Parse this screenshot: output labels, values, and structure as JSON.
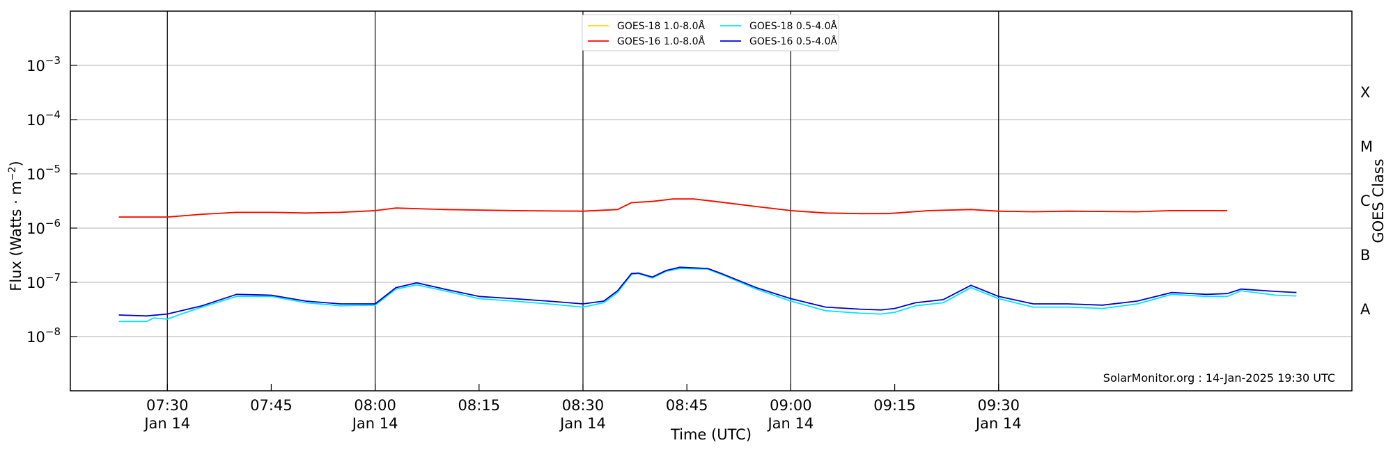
{
  "chart_data": {
    "type": "line",
    "ylabel_main": "Flux (Watts · m",
    "ylabel_sup": "−2",
    "ylabel_close": ")",
    "xlabel": "Time (UTC)",
    "right_label": "GOES Class",
    "credit": "SolarMonitor.org : 14-Jan-2025 19:30 UTC",
    "yscale": "log",
    "ylim": [
      "1e-9",
      "1e-2"
    ],
    "x_range_minutes": [
      -14,
      60.5
    ],
    "y_ticks": [
      {
        "exp": -8,
        "base": "10",
        "sup": "−8"
      },
      {
        "exp": -7,
        "base": "10",
        "sup": "−7"
      },
      {
        "exp": -6,
        "base": "10",
        "sup": "−6"
      },
      {
        "exp": -5,
        "base": "10",
        "sup": "−5"
      },
      {
        "exp": -4,
        "base": "10",
        "sup": "−4"
      },
      {
        "exp": -3,
        "base": "10",
        "sup": "−3"
      }
    ],
    "x_ticks": [
      {
        "minutes": 0,
        "time": "07:30",
        "date": "Jan 14",
        "major": true
      },
      {
        "minutes": 15,
        "time": "07:45",
        "date": "",
        "major": false
      },
      {
        "minutes": 30,
        "time": "08:00",
        "date": "Jan 14",
        "major": true
      },
      {
        "minutes": 45,
        "time": "08:15",
        "date": "",
        "major": false
      },
      {
        "minutes": 60,
        "time": "08:30",
        "date": "Jan 14",
        "major": true
      },
      {
        "minutes": 75,
        "time": "08:45",
        "date": "",
        "major": false
      },
      {
        "minutes": 90,
        "time": "09:00",
        "date": "Jan 14",
        "major": true
      },
      {
        "minutes": 105,
        "time": "09:15",
        "date": "",
        "major": false
      },
      {
        "minutes": 120,
        "time": "09:30",
        "date": "Jan 14",
        "major": true
      }
    ],
    "goes_classes": [
      {
        "label": "A",
        "exp": -7.5
      },
      {
        "label": "B",
        "exp": -6.5
      },
      {
        "label": "C",
        "exp": -5.5
      },
      {
        "label": "M",
        "exp": -4.5
      },
      {
        "label": "X",
        "exp": -3.5
      }
    ],
    "legend": [
      {
        "name": "GOES-18 1.0-8.0Å",
        "color": "#ffd700"
      },
      {
        "name": "GOES-16 1.0-8.0Å",
        "color": "#ff0000"
      },
      {
        "name": "GOES-18 0.5-4.0Å",
        "color": "#00e5ff"
      },
      {
        "name": "GOES-16 0.5-4.0Å",
        "color": "#0000cc"
      }
    ],
    "series": [
      {
        "name": "GOES-18 1.0-8.0Å",
        "color": "#ffd700",
        "points": [
          [
            -7,
            1.6e-06
          ],
          [
            0,
            1.6e-06
          ],
          [
            5,
            1.8e-06
          ],
          [
            10,
            1.95e-06
          ],
          [
            15,
            1.95e-06
          ],
          [
            20,
            1.9e-06
          ],
          [
            25,
            1.95e-06
          ],
          [
            30,
            2.1e-06
          ],
          [
            33,
            2.35e-06
          ],
          [
            40,
            2.2e-06
          ],
          [
            50,
            2.1e-06
          ],
          [
            60,
            2.05e-06
          ],
          [
            65,
            2.2e-06
          ],
          [
            67,
            2.95e-06
          ],
          [
            70,
            3.1e-06
          ],
          [
            73,
            3.45e-06
          ],
          [
            76,
            3.45e-06
          ],
          [
            80,
            3e-06
          ],
          [
            85,
            2.5e-06
          ],
          [
            90,
            2.1e-06
          ],
          [
            95,
            1.9e-06
          ],
          [
            100,
            1.85e-06
          ],
          [
            104,
            1.85e-06
          ],
          [
            110,
            2.1e-06
          ],
          [
            116,
            2.2e-06
          ],
          [
            120,
            2.05e-06
          ],
          [
            125,
            2e-06
          ],
          [
            130,
            2.05e-06
          ],
          [
            140,
            2e-06
          ],
          [
            145,
            2.1e-06
          ],
          [
            150,
            2.1e-06
          ],
          [
            153,
            2.1e-06
          ]
        ]
      },
      {
        "name": "GOES-16 1.0-8.0Å",
        "color": "#ff0000",
        "points": [
          [
            -7,
            1.6e-06
          ],
          [
            0,
            1.6e-06
          ],
          [
            5,
            1.8e-06
          ],
          [
            10,
            1.95e-06
          ],
          [
            15,
            1.95e-06
          ],
          [
            20,
            1.9e-06
          ],
          [
            25,
            1.95e-06
          ],
          [
            30,
            2.1e-06
          ],
          [
            33,
            2.35e-06
          ],
          [
            40,
            2.2e-06
          ],
          [
            50,
            2.1e-06
          ],
          [
            60,
            2.05e-06
          ],
          [
            65,
            2.2e-06
          ],
          [
            67,
            2.95e-06
          ],
          [
            70,
            3.1e-06
          ],
          [
            73,
            3.45e-06
          ],
          [
            76,
            3.45e-06
          ],
          [
            80,
            3e-06
          ],
          [
            85,
            2.5e-06
          ],
          [
            90,
            2.1e-06
          ],
          [
            95,
            1.9e-06
          ],
          [
            100,
            1.85e-06
          ],
          [
            104,
            1.85e-06
          ],
          [
            110,
            2.1e-06
          ],
          [
            116,
            2.2e-06
          ],
          [
            120,
            2.05e-06
          ],
          [
            125,
            2e-06
          ],
          [
            130,
            2.05e-06
          ],
          [
            140,
            2e-06
          ],
          [
            145,
            2.1e-06
          ],
          [
            150,
            2.1e-06
          ],
          [
            153,
            2.1e-06
          ]
        ]
      },
      {
        "name": "GOES-18 0.5-4.0Å",
        "color": "#00e5ff",
        "points": [
          [
            -7,
            1.9e-08
          ],
          [
            -3,
            1.9e-08
          ],
          [
            -2,
            2.2e-08
          ],
          [
            0,
            2.1e-08
          ],
          [
            2,
            2.6e-08
          ],
          [
            5,
            3.5e-08
          ],
          [
            10,
            5.5e-08
          ],
          [
            15,
            5.5e-08
          ],
          [
            20,
            4.2e-08
          ],
          [
            25,
            3.7e-08
          ],
          [
            30,
            3.8e-08
          ],
          [
            33,
            7.5e-08
          ],
          [
            36,
            9e-08
          ],
          [
            40,
            7e-08
          ],
          [
            45,
            5e-08
          ],
          [
            50,
            4.5e-08
          ],
          [
            55,
            4e-08
          ],
          [
            60,
            3.5e-08
          ],
          [
            63,
            4.2e-08
          ],
          [
            65,
            6.5e-08
          ],
          [
            67,
            1.4e-07
          ],
          [
            68,
            1.45e-07
          ],
          [
            70,
            1.2e-07
          ],
          [
            72,
            1.6e-07
          ],
          [
            74,
            1.8e-07
          ],
          [
            78,
            1.75e-07
          ],
          [
            80,
            1.4e-07
          ],
          [
            85,
            7.5e-08
          ],
          [
            90,
            4.5e-08
          ],
          [
            95,
            3e-08
          ],
          [
            100,
            2.7e-08
          ],
          [
            103,
            2.6e-08
          ],
          [
            105,
            2.8e-08
          ],
          [
            108,
            3.7e-08
          ],
          [
            112,
            4.2e-08
          ],
          [
            116,
            8e-08
          ],
          [
            120,
            5e-08
          ],
          [
            125,
            3.5e-08
          ],
          [
            130,
            3.5e-08
          ],
          [
            135,
            3.3e-08
          ],
          [
            140,
            4e-08
          ],
          [
            145,
            6e-08
          ],
          [
            150,
            5.5e-08
          ],
          [
            153,
            5.5e-08
          ],
          [
            155,
            7e-08
          ],
          [
            160,
            5.8e-08
          ],
          [
            163,
            5.6e-08
          ]
        ]
      },
      {
        "name": "GOES-16 0.5-4.0Å",
        "color": "#0000cc",
        "points": [
          [
            -7,
            2.5e-08
          ],
          [
            -3,
            2.4e-08
          ],
          [
            0,
            2.6e-08
          ],
          [
            5,
            3.7e-08
          ],
          [
            10,
            6e-08
          ],
          [
            15,
            5.8e-08
          ],
          [
            20,
            4.5e-08
          ],
          [
            25,
            4e-08
          ],
          [
            30,
            4e-08
          ],
          [
            33,
            8e-08
          ],
          [
            36,
            9.8e-08
          ],
          [
            40,
            7.5e-08
          ],
          [
            45,
            5.5e-08
          ],
          [
            50,
            5e-08
          ],
          [
            55,
            4.5e-08
          ],
          [
            60,
            4e-08
          ],
          [
            63,
            4.5e-08
          ],
          [
            65,
            7e-08
          ],
          [
            67,
            1.45e-07
          ],
          [
            68,
            1.48e-07
          ],
          [
            70,
            1.25e-07
          ],
          [
            72,
            1.65e-07
          ],
          [
            74,
            1.9e-07
          ],
          [
            78,
            1.8e-07
          ],
          [
            80,
            1.45e-07
          ],
          [
            85,
            8e-08
          ],
          [
            90,
            5e-08
          ],
          [
            95,
            3.5e-08
          ],
          [
            100,
            3.2e-08
          ],
          [
            103,
            3.1e-08
          ],
          [
            105,
            3.3e-08
          ],
          [
            108,
            4.2e-08
          ],
          [
            112,
            4.8e-08
          ],
          [
            116,
            8.8e-08
          ],
          [
            120,
            5.5e-08
          ],
          [
            125,
            4e-08
          ],
          [
            130,
            4e-08
          ],
          [
            135,
            3.8e-08
          ],
          [
            140,
            4.5e-08
          ],
          [
            145,
            6.5e-08
          ],
          [
            150,
            6e-08
          ],
          [
            153,
            6.2e-08
          ],
          [
            155,
            7.5e-08
          ],
          [
            160,
            6.8e-08
          ],
          [
            163,
            6.5e-08
          ]
        ]
      }
    ]
  }
}
